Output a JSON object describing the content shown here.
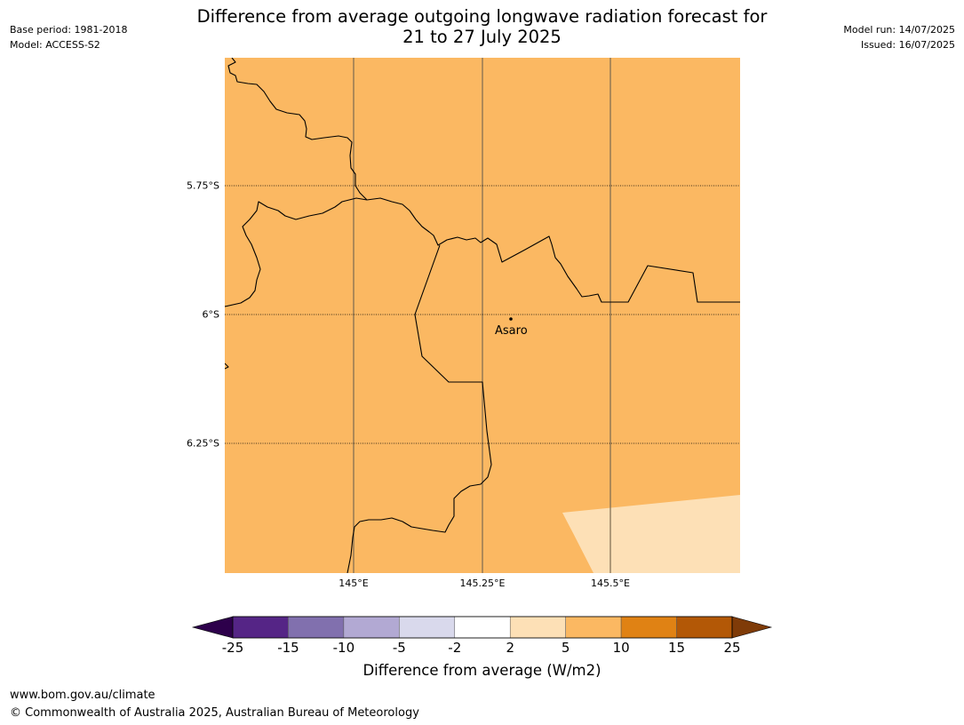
{
  "title_line1": "Difference from average outgoing longwave radiation forecast for",
  "title_line2": "21 to 27 July 2025",
  "base_period": "Base period: 1981-2018",
  "model": "Model: ACCESS-S2",
  "model_run": "Model run: 14/07/2025",
  "issued": "Issued: 16/07/2025",
  "map": {
    "lat_labels": [
      "5.75°S",
      "6°S",
      "6.25°S"
    ],
    "lon_labels": [
      "145°E",
      "145.25°E",
      "145.5°E"
    ],
    "place": "Asaro",
    "base_color": "#fbb862",
    "low_color": "#fde0b6",
    "line_color": "#000000",
    "meridian_color": "#7a6a50"
  },
  "colorbar": {
    "ticks": [
      "-25",
      "-15",
      "-10",
      "-5",
      "-2",
      "2",
      "5",
      "10",
      "15",
      "25"
    ],
    "colors": [
      "#552586",
      "#8170ae",
      "#b2a9d3",
      "#d9d9ec",
      "#ffffff",
      "#fde0b6",
      "#fbb862",
      "#e08214",
      "#b35806"
    ],
    "under_color": "#2d004b",
    "over_color": "#7f3b08",
    "label": "Difference from average (W/m2)"
  },
  "footer_url": "www.bom.gov.au/climate",
  "footer_copyright": "© Commonwealth of Australia 2025, Australian Bureau of Meteorology"
}
